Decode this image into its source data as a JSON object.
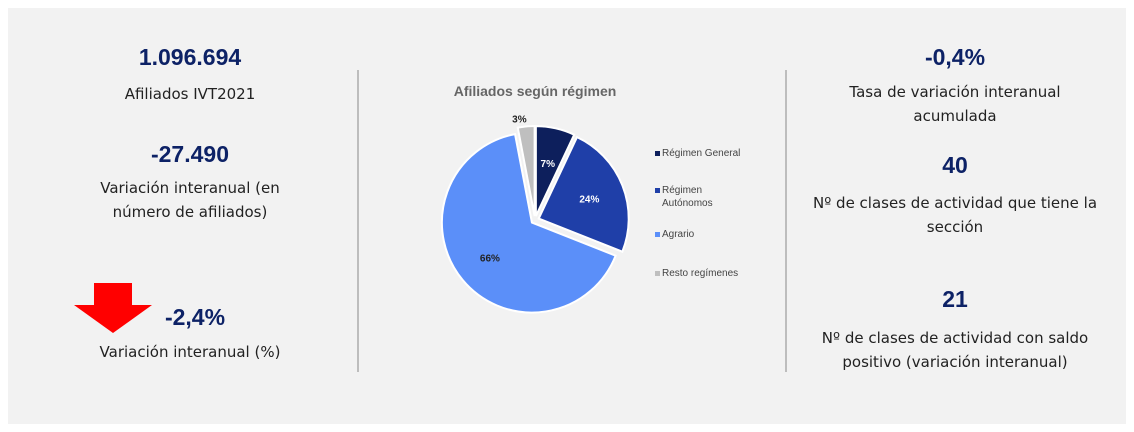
{
  "left": {
    "k1": {
      "value": "1.096.694",
      "label": "Afiliados IVT2021"
    },
    "k2": {
      "value": "-27.490",
      "label": "Variación interanual (en número de afiliados)"
    },
    "k3": {
      "value": "-2,4%",
      "label": "Variación interanual (%)"
    }
  },
  "right": {
    "k1": {
      "value": "-0,4%",
      "label": "Tasa de variación interanual acumulada"
    },
    "k2": {
      "value": "40",
      "label": "Nº de clases de actividad que tiene la sección"
    },
    "k3": {
      "value": "21",
      "label": "Nº de clases de actividad con saldo positivo (variación interanual)"
    }
  },
  "chart_data": {
    "type": "pie",
    "title": "Afiliados según régimen",
    "categories": [
      "Régimen General",
      "Régimen Autónomos",
      "Agrario",
      "Resto regímenes"
    ],
    "values": [
      7,
      24,
      66,
      3
    ],
    "value_labels": [
      "7%",
      "24%",
      "66%",
      "3%"
    ],
    "colors": [
      "#0d1f5c",
      "#1f3fa8",
      "#5b8ff9",
      "#bfbfbf"
    ],
    "legend": "right"
  }
}
